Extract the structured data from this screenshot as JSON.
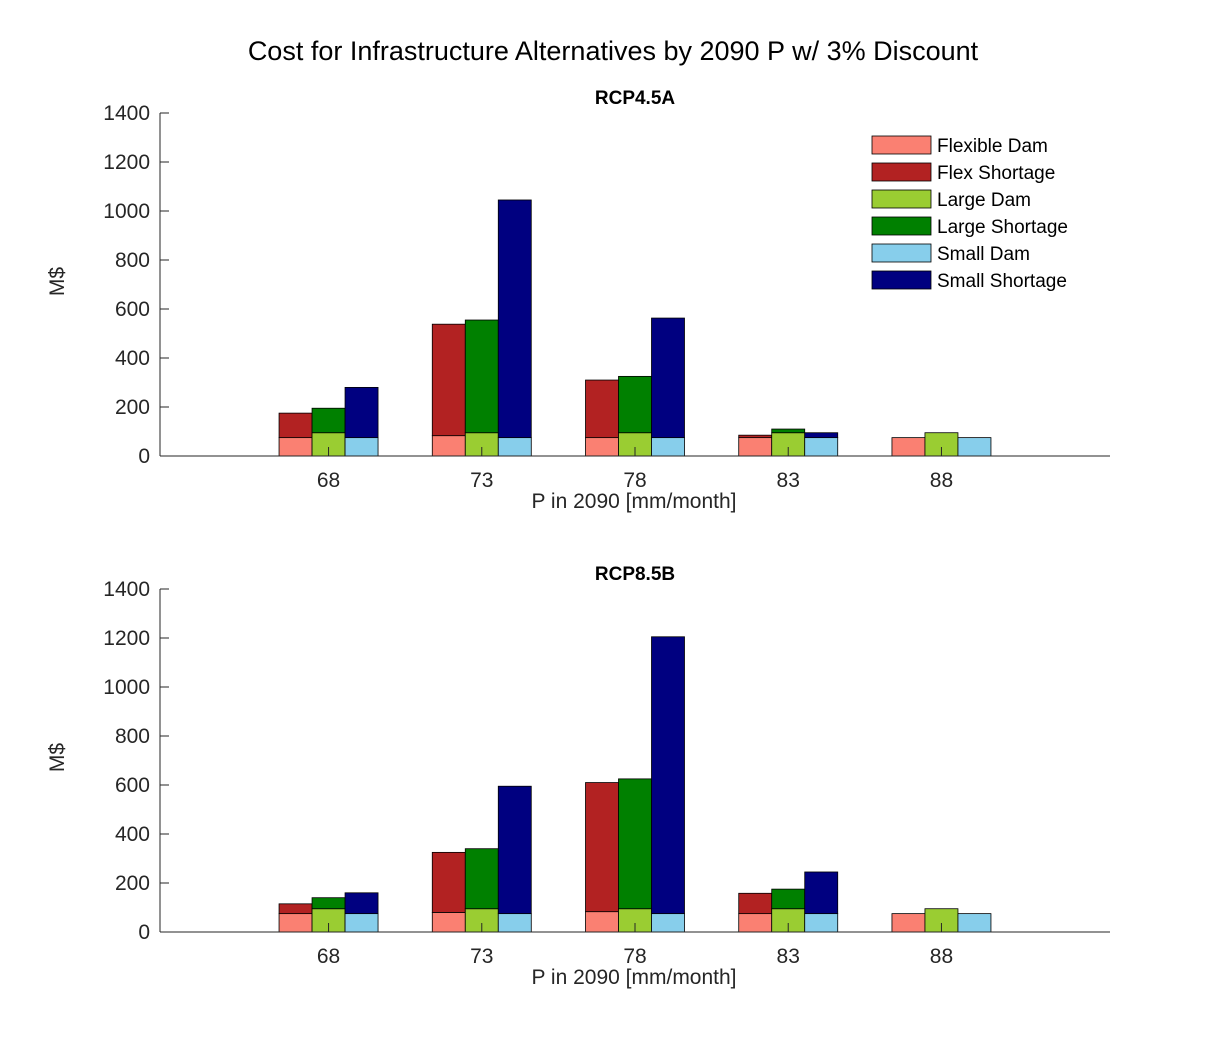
{
  "figure": {
    "title": "Cost for Infrastructure Alternatives by 2090 P w/ 3% Discount"
  },
  "legend": {
    "placement": "top-right of first panel",
    "entries": [
      {
        "name": "Flexible Dam",
        "color": "#fa8072"
      },
      {
        "name": "Flex Shortage",
        "color": "#b22222"
      },
      {
        "name": "Large Dam",
        "color": "#9acd32"
      },
      {
        "name": "Large Shortage",
        "color": "#008000"
      },
      {
        "name": "Small Dam",
        "color": "#87ceeb"
      },
      {
        "name": "Small Shortage",
        "color": "#000080"
      }
    ]
  },
  "chart_data": [
    {
      "type": "bar",
      "stacked": true,
      "title": "RCP4.5A",
      "xlabel": "P in 2090 [mm/month]",
      "ylabel": "M$",
      "categories": [
        "68",
        "73",
        "78",
        "83",
        "88"
      ],
      "ylim": [
        0,
        1400
      ],
      "yticks": [
        0,
        200,
        400,
        600,
        800,
        1000,
        1200,
        1400
      ],
      "grid": false,
      "groups": [
        {
          "name": "Flexible",
          "dam": [
            75,
            83,
            75,
            75,
            75
          ],
          "shortage": [
            100,
            455,
            235,
            10,
            0
          ]
        },
        {
          "name": "Large",
          "dam": [
            95,
            95,
            95,
            95,
            95
          ],
          "shortage": [
            100,
            460,
            230,
            15,
            0
          ]
        },
        {
          "name": "Small",
          "dam": [
            75,
            75,
            75,
            75,
            75
          ],
          "shortage": [
            205,
            970,
            488,
            20,
            0
          ]
        }
      ]
    },
    {
      "type": "bar",
      "stacked": true,
      "title": "RCP8.5B",
      "xlabel": "P in 2090 [mm/month]",
      "ylabel": "M$",
      "categories": [
        "68",
        "73",
        "78",
        "83",
        "88"
      ],
      "ylim": [
        0,
        1400
      ],
      "yticks": [
        0,
        200,
        400,
        600,
        800,
        1000,
        1200,
        1400
      ],
      "grid": false,
      "groups": [
        {
          "name": "Flexible",
          "dam": [
            75,
            80,
            83,
            75,
            75
          ],
          "shortage": [
            40,
            245,
            527,
            83,
            0
          ]
        },
        {
          "name": "Large",
          "dam": [
            95,
            95,
            95,
            95,
            95
          ],
          "shortage": [
            45,
            245,
            530,
            80,
            0
          ]
        },
        {
          "name": "Small",
          "dam": [
            75,
            75,
            75,
            75,
            75
          ],
          "shortage": [
            85,
            520,
            1130,
            170,
            0
          ]
        }
      ]
    }
  ]
}
